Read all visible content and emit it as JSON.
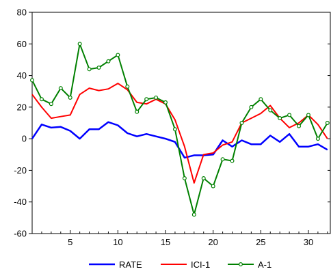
{
  "chart_data": {
    "type": "line",
    "title": "",
    "xlabel": "",
    "ylabel": "",
    "ylim": [
      -60,
      80
    ],
    "xlim": [
      1,
      32
    ],
    "y_ticks": [
      -60,
      -40,
      -20,
      0,
      20,
      40,
      60,
      80
    ],
    "x_ticks": [
      5,
      10,
      15,
      20,
      25,
      30
    ],
    "grid": false,
    "legend_position": "bottom",
    "x": [
      1,
      2,
      3,
      4,
      5,
      6,
      7,
      8,
      9,
      10,
      11,
      12,
      13,
      14,
      15,
      16,
      17,
      18,
      19,
      20,
      21,
      22,
      23,
      24,
      25,
      26,
      27,
      28,
      29,
      30,
      31,
      32
    ],
    "series": [
      {
        "name": "RATE",
        "color": "#0000ff",
        "marker": "none",
        "values": [
          0,
          9,
          7,
          7.5,
          5,
          0,
          6,
          6,
          10.5,
          8.5,
          3.5,
          1.5,
          3,
          1.5,
          0,
          -2,
          -12,
          -10.5,
          -10.5,
          -10,
          -1,
          -5,
          -1,
          -3.5,
          -3.5,
          2,
          -2,
          3,
          -5,
          -5,
          -3.5,
          -7
        ]
      },
      {
        "name": "ICI-1",
        "color": "#ff0000",
        "marker": "none",
        "values": [
          28,
          20,
          13,
          14,
          15,
          28,
          32,
          30.5,
          31.5,
          35,
          31,
          23,
          22,
          25,
          22,
          12,
          -5,
          -28,
          -10,
          -9,
          -4,
          -2,
          10,
          13,
          16,
          21,
          13,
          7,
          10,
          15,
          9,
          0
        ]
      },
      {
        "name": "A-1",
        "color": "#008000",
        "marker": "circle",
        "values": [
          37,
          25,
          22,
          32,
          26,
          60,
          44,
          45,
          49,
          53,
          33,
          17,
          25,
          26,
          23,
          6,
          -25,
          -48,
          -25,
          -30,
          -13,
          -14,
          10,
          20,
          25,
          18,
          13,
          15,
          8,
          15,
          0,
          10
        ]
      }
    ]
  },
  "colors": {
    "background": "#ffffff",
    "axis": "#000000",
    "rate": "#0000ff",
    "ici": "#ff0000",
    "a1": "#008000"
  }
}
